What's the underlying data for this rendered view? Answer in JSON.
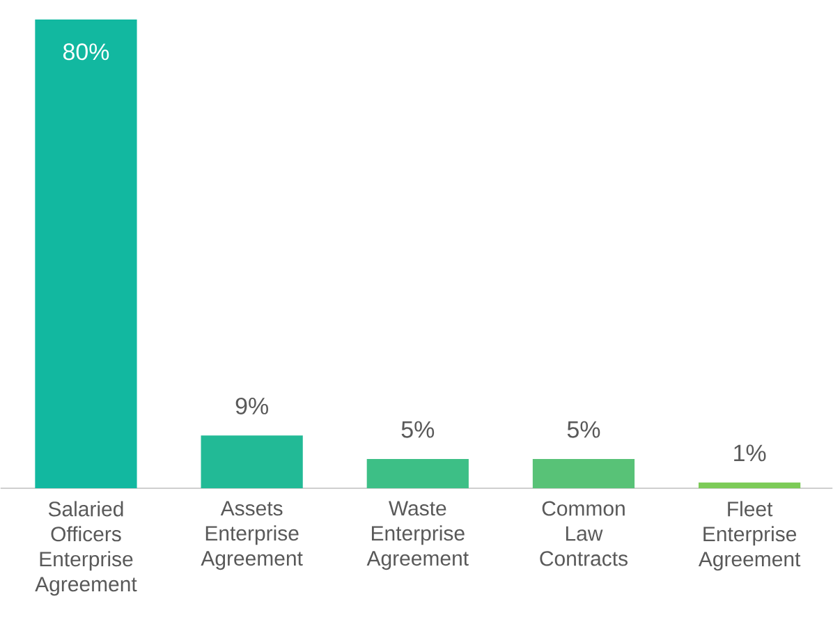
{
  "chart_data": {
    "type": "bar",
    "categories": [
      "Salaried Officers Enterprise Agreement",
      "Assets Enterprise Agreement",
      "Waste Enterprise Agreement",
      "Common Law Contracts",
      "Fleet Enterprise Agreement"
    ],
    "values": [
      80,
      9,
      5,
      5,
      1
    ],
    "colors": [
      "#12b8a0",
      "#22ba96",
      "#3dbf86",
      "#58c277",
      "#7ccb57"
    ],
    "value_labels": [
      "80%",
      "9%",
      "5%",
      "5%",
      "1%"
    ]
  }
}
